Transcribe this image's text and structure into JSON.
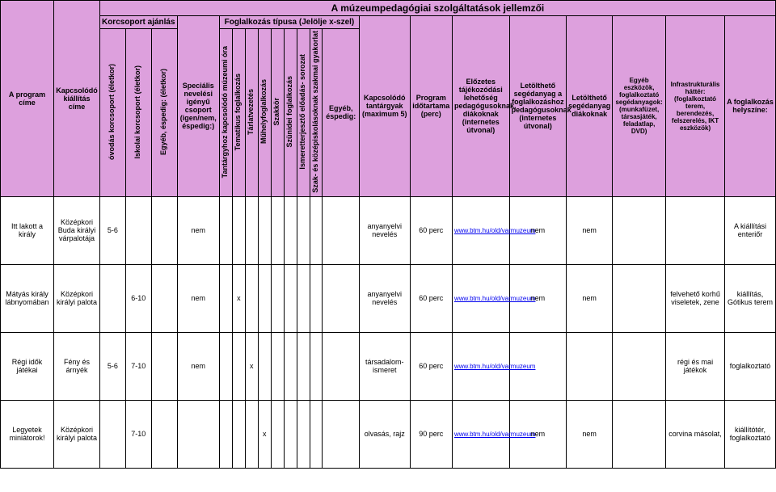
{
  "title": "A múzeumpedagógiai szolgáltatások jellemzői",
  "group1": "Korcsoport ajánlás",
  "group2": "Foglalkozás típusa (Jelölje x-szel)",
  "headers": {
    "c0": "A program címe",
    "c1": "Kapcsolódó kiállítás címe",
    "c2": "óvodás korcsoport (életkor)",
    "c3": "Iskolai korcsoport (életkor)",
    "c4": "Egyéb, éspedig: (életkor)",
    "c5": "Speciális nevelési igényű csoport (igen/nem, éspedig:)",
    "c6": "Tantárgyhoz kapcsolódó múzeumi óra",
    "c7": "Tematikus foglalkozás",
    "c8": "Tárlatvezetés",
    "c9": "Műhelyfoglalkozás",
    "c10": "Szakkör",
    "c11": "Szünidei foglalkozás",
    "c12": "Ismeretterjesztő előadás- sorozat",
    "c13": "Szak- és középiskolásoknak szakmai gyakorlat",
    "c14": "Egyéb, éspedig:",
    "c15": "Kapcsolódó tantárgyak (maximum 5)",
    "c16": "Program időtartama (perc)",
    "c17": "Előzetes tájékozódási lehetőség pedagógusoknak, diákoknak (internetes útvonal)",
    "c18": "Letölthető segédanyag a foglalkozáshoz pedagógusoknak (internetes útvonal)",
    "c19": "Letölthető segédanyag diákoknak",
    "c20": "Egyéb eszközök, foglalkoztató segédanyagok: (munkafüzet, társasjáték, feladatlap, DVD)",
    "c21": "Infrastrukturális háttér: (foglalkoztató terem, berendezés, felszerelés, IKT eszközök)",
    "c22": "A foglalkozás helyszíne:"
  },
  "rows": [
    {
      "c0": "Itt lakott a király",
      "c1": "Középkori Buda királyi várpalotája",
      "c2": "5-6",
      "c3": "",
      "c4": "",
      "c5": "nem",
      "c6": "",
      "c7": "",
      "c8": "",
      "c9": "",
      "c10": "",
      "c11": "",
      "c12": "",
      "c13": "",
      "c14": "",
      "c15": "anyanyelvi nevelés",
      "c16": "60 perc",
      "c17_link": "www.btm.hu/old/varmuzeum",
      "c18": "nem",
      "c19": "nem",
      "c20": "",
      "c21": "",
      "c22": "A kiállítási enteriőr"
    },
    {
      "c0": "Mátyás király lábnyomában",
      "c1": "Középkori királyi palota",
      "c2": "",
      "c3": "6-10",
      "c4": "",
      "c5": "nem",
      "c6": "",
      "c7": "x",
      "c8": "",
      "c9": "",
      "c10": "",
      "c11": "",
      "c12": "",
      "c13": "",
      "c14": "",
      "c15": "anyanyelvi nevelés",
      "c16": "60 perc",
      "c17_link": "www.btm.hu/old/varmuzeum",
      "c18": "nem",
      "c19": "nem",
      "c20": "",
      "c21": "felvehető korhű viseletek, zene",
      "c22": "kiállítás, Gótikus terem"
    },
    {
      "c0": "Régi idők játékai",
      "c1": "Fény és árnyék",
      "c2": "5-6",
      "c3": "7-10",
      "c4": "",
      "c5": "nem",
      "c6": "",
      "c7": "",
      "c8": "x",
      "c9": "",
      "c10": "",
      "c11": "",
      "c12": "",
      "c13": "",
      "c14": "",
      "c15": "társadalom-ismeret",
      "c16": "60 perc",
      "c17_link": "www.btm.hu/old/varmuzeum",
      "c18": "",
      "c19": "",
      "c20": "",
      "c21": "régi és mai játékok",
      "c22": "foglalkoztató"
    },
    {
      "c0": "Legyetek miniátorok!",
      "c1": "Középkori királyi palota",
      "c2": "",
      "c3": "7-10",
      "c4": "",
      "c5": "",
      "c6": "",
      "c7": "",
      "c8": "",
      "c9": "x",
      "c10": "",
      "c11": "",
      "c12": "",
      "c13": "",
      "c14": "",
      "c15": "olvasás, rajz",
      "c16": "90 perc",
      "c17_link": "www.btm.hu/old/varmuzeum",
      "c18": "nem",
      "c19": "nem",
      "c20": "",
      "c21": "corvina másolat,",
      "c22": "kiállítótér, foglalkoztató"
    }
  ]
}
